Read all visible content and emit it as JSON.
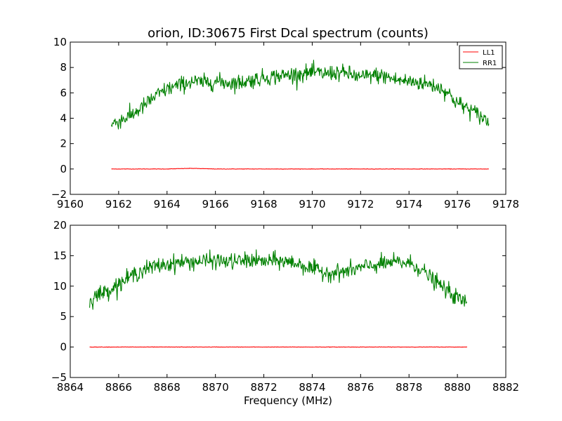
{
  "chart_data": [
    {
      "type": "line",
      "title": "orion, ID:30675 First Dcal spectrum (counts)",
      "xlabel": "",
      "ylabel": "",
      "xlim": [
        9160,
        9178
      ],
      "ylim": [
        -2,
        10
      ],
      "xticks": [
        "9160",
        "9162",
        "9164",
        "9166",
        "9168",
        "9170",
        "9172",
        "9174",
        "9176",
        "9178"
      ],
      "yticks": [
        "−2",
        "0",
        "2",
        "4",
        "6",
        "8",
        "10"
      ],
      "legend": {
        "placement": "top-right",
        "entries": [
          "LL1",
          "RR1"
        ]
      },
      "grid": false,
      "series": [
        {
          "name": "LL1",
          "color": "#ff0000",
          "x": [
            9161.7,
            9162,
            9163,
            9164,
            9165,
            9166,
            9167,
            9168,
            9169,
            9170,
            9171,
            9172,
            9173,
            9174,
            9175,
            9176,
            9177,
            9177.3
          ],
          "y": [
            0,
            0,
            0,
            0,
            0.05,
            0,
            0,
            0,
            0,
            0,
            0,
            0,
            0,
            0,
            0,
            0,
            0,
            0
          ]
        },
        {
          "name": "RR1",
          "color": "#008000",
          "x": [
            9161.7,
            9162,
            9162.5,
            9163,
            9163.5,
            9164,
            9164.5,
            9165,
            9165.5,
            9166,
            9166.5,
            9167,
            9167.5,
            9168,
            9168.5,
            9169,
            9169.5,
            9170,
            9170.5,
            9171,
            9171.5,
            9172,
            9172.5,
            9173,
            9173.5,
            9174,
            9174.5,
            9175,
            9175.5,
            9176,
            9176.5,
            9177,
            9177.3
          ],
          "y": [
            3.5,
            3.8,
            4.2,
            4.9,
            5.7,
            6.3,
            6.6,
            6.9,
            6.8,
            6.9,
            6.8,
            6.8,
            7.0,
            7.2,
            7.3,
            7.4,
            7.5,
            7.6,
            7.5,
            7.6,
            7.5,
            7.2,
            7.4,
            7.3,
            7.0,
            6.9,
            6.8,
            6.6,
            6.2,
            5.2,
            4.7,
            4.1,
            3.7
          ]
        }
      ]
    },
    {
      "type": "line",
      "title": "",
      "xlabel": "Frequency (MHz)",
      "ylabel": "",
      "xlim": [
        8864,
        8882
      ],
      "ylim": [
        -5,
        20
      ],
      "xticks": [
        "8864",
        "8866",
        "8868",
        "8870",
        "8872",
        "8874",
        "8876",
        "8878",
        "8880",
        "8882"
      ],
      "yticks": [
        "−5",
        "0",
        "5",
        "10",
        "15",
        "20"
      ],
      "legend": null,
      "grid": false,
      "series": [
        {
          "color": "#ff0000",
          "x": [
            8864.8,
            8865,
            8866,
            8867,
            8868,
            8869,
            8870,
            8871,
            8872,
            8873,
            8874,
            8875,
            8876,
            8877,
            8878,
            8879,
            8880,
            8880.4
          ],
          "y": [
            0,
            0,
            0,
            0,
            0,
            0,
            0,
            0,
            0,
            0,
            0,
            0,
            0,
            0,
            0,
            0,
            0,
            0
          ]
        },
        {
          "color": "#008000",
          "x": [
            8864.8,
            8865,
            8865.5,
            8866,
            8866.5,
            8867,
            8867.5,
            8868,
            8868.5,
            8869,
            8869.5,
            8870,
            8870.5,
            8871,
            8871.5,
            8872,
            8872.5,
            8873,
            8873.5,
            8874,
            8874.5,
            8875,
            8875.5,
            8876,
            8876.5,
            8877,
            8877.5,
            8878,
            8878.5,
            8879,
            8879.5,
            8880,
            8880.4
          ],
          "y": [
            7.5,
            8.3,
            9.2,
            10.3,
            11.6,
            12.7,
            13.2,
            13.6,
            13.9,
            14.0,
            14.1,
            14.2,
            14.0,
            14.1,
            14.3,
            14.0,
            14.2,
            14.0,
            13.6,
            12.8,
            12.3,
            12.2,
            12.5,
            13.0,
            13.4,
            13.7,
            13.9,
            13.8,
            12.8,
            11.0,
            9.5,
            8.0,
            7.3
          ]
        }
      ]
    }
  ]
}
